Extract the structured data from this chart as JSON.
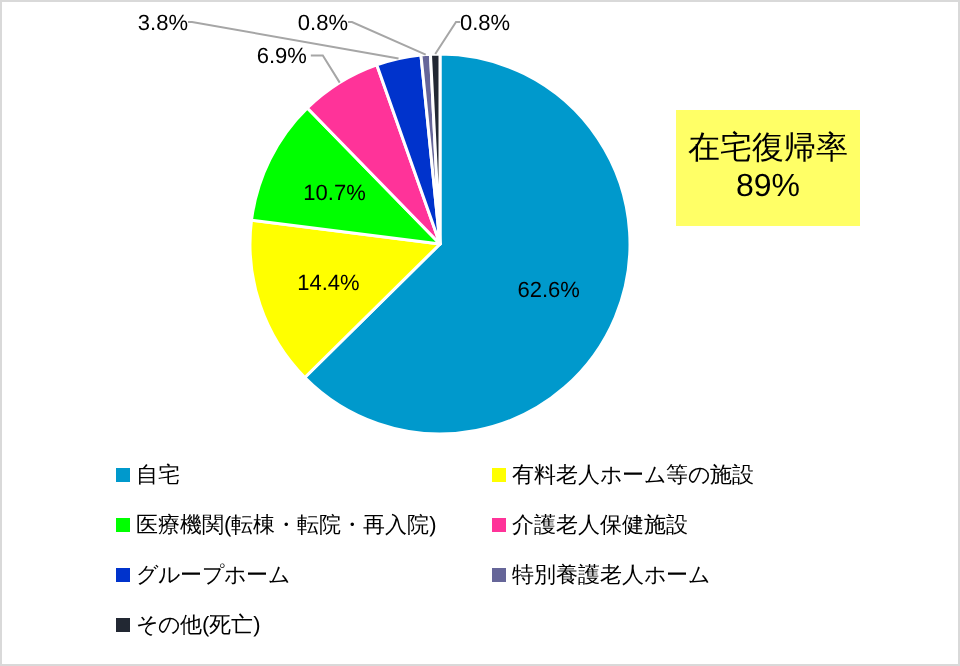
{
  "chart_data": {
    "type": "pie",
    "categories": [
      "自宅",
      "有料老人ホーム等の施設",
      "医療機関(転棟・転院・再入院)",
      "介護老人保健施設",
      "グループホーム",
      "特別養護老人ホーム",
      "その他(死亡)"
    ],
    "values": [
      62.6,
      14.4,
      10.7,
      6.9,
      3.8,
      0.8,
      0.8
    ],
    "colors": [
      "#0099cc",
      "#ffff00",
      "#00ff00",
      "#ff3399",
      "#0033cc",
      "#666699",
      "#222833"
    ],
    "value_labels": [
      "62.6%",
      "14.4%",
      "10.7%",
      "6.9%",
      "3.8%",
      "0.8%",
      "0.8%"
    ],
    "legend": "bottom",
    "annotations": [
      "在宅復帰率",
      "89%"
    ]
  }
}
